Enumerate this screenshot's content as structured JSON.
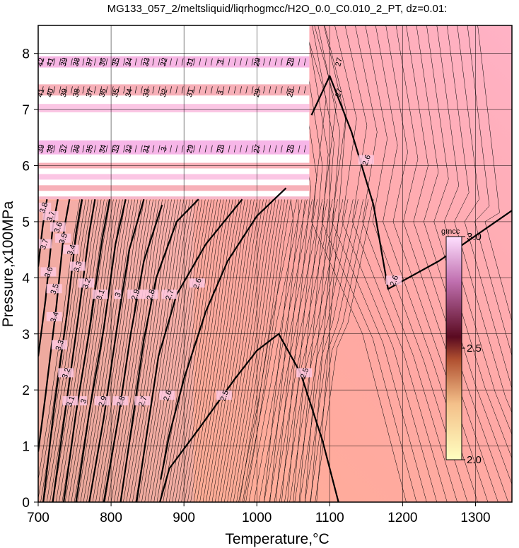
{
  "title": "MG133_057_2/meltsliquid/liqrhogmcc/H2O_0.0_C0.010_2_PT, dz=0.01:",
  "chart_data": {
    "type": "heatmap",
    "xlabel": "Temperature,°C",
    "ylabel": "Pressure,x100MPa",
    "xlim": [
      700,
      1350
    ],
    "ylim": [
      0,
      8.5
    ],
    "xticks": [
      700,
      800,
      900,
      1000,
      1100,
      1200,
      1300
    ],
    "xtick_labels": [
      "700",
      "800",
      "900",
      "1000",
      "1100",
      "1200",
      "1300"
    ],
    "yticks": [
      0,
      1,
      2,
      3,
      4,
      5,
      6,
      7,
      8
    ],
    "ytick_labels": [
      "0",
      "1",
      "2",
      "3",
      "4",
      "5",
      "6",
      "7",
      "8"
    ],
    "grid": true,
    "colorbar": {
      "unit": "gmcc",
      "min": 2.0,
      "max": 3.0,
      "ticks": [
        2.0,
        2.5,
        3.0
      ],
      "tick_labels": [
        "2.0",
        "2.5",
        "3.0"
      ],
      "colors": [
        "#ffffc0",
        "#f4c08a",
        "#b05030",
        "#5a0a20",
        "#c070b0",
        "#ffe0ff"
      ]
    },
    "contour_interval": 0.01,
    "bold_contours": [
      {
        "label": "2.5",
        "points": [
          [
            867,
            0
          ],
          [
            880,
            0.6
          ],
          [
            920,
            1.3
          ],
          [
            970,
            2.2
          ],
          [
            1000,
            2.7
          ],
          [
            1030,
            3.0
          ],
          [
            1060,
            2.3
          ],
          [
            1090,
            1.1
          ],
          [
            1112,
            0
          ]
        ]
      },
      {
        "label": "2.6",
        "points": [
          [
            868,
            0.4
          ],
          [
            880,
            1.2
          ],
          [
            900,
            2.2
          ],
          [
            930,
            3.4
          ],
          [
            960,
            4.3
          ],
          [
            1000,
            5.1
          ],
          [
            1040,
            5.6
          ]
        ]
      },
      {
        "label": "2.6",
        "points": [
          [
            1075,
            6.9
          ],
          [
            1100,
            7.6
          ],
          [
            1130,
            6.6
          ],
          [
            1160,
            5.3
          ],
          [
            1180,
            3.8
          ],
          [
            1250,
            4.3
          ],
          [
            1350,
            5.2
          ]
        ]
      },
      {
        "label": "2.7",
        "points": [
          [
            835,
            0
          ],
          [
            850,
            1.3
          ],
          [
            865,
            2.6
          ],
          [
            890,
            3.7
          ],
          [
            930,
            4.6
          ],
          [
            980,
            5.4
          ]
        ]
      },
      {
        "label": "2.8",
        "points": [
          [
            813,
            0
          ],
          [
            830,
            1.5
          ],
          [
            845,
            2.9
          ],
          [
            862,
            4.0
          ],
          [
            890,
            5.0
          ],
          [
            920,
            5.4
          ]
        ]
      },
      {
        "label": "2.9",
        "points": [
          [
            790,
            0
          ],
          [
            810,
            1.5
          ],
          [
            827,
            3.0
          ],
          [
            845,
            4.3
          ],
          [
            870,
            5.3
          ]
        ]
      },
      {
        "label": "3",
        "points": [
          [
            770,
            0
          ],
          [
            790,
            1.5
          ],
          [
            808,
            3.1
          ],
          [
            825,
            4.5
          ],
          [
            845,
            5.4
          ]
        ]
      },
      {
        "label": "3.1",
        "points": [
          [
            752,
            0
          ],
          [
            770,
            1.6
          ],
          [
            790,
            3.1
          ],
          [
            806,
            4.6
          ],
          [
            820,
            5.4
          ]
        ]
      },
      {
        "label": "3.2",
        "points": [
          [
            735,
            0
          ],
          [
            752,
            1.6
          ],
          [
            772,
            3.2
          ],
          [
            788,
            4.7
          ],
          [
            798,
            5.4
          ]
        ]
      },
      {
        "label": "3.3",
        "points": [
          [
            720,
            0
          ],
          [
            737,
            1.6
          ],
          [
            755,
            3.3
          ],
          [
            770,
            4.8
          ],
          [
            778,
            5.4
          ]
        ]
      },
      {
        "label": "3.4",
        "points": [
          [
            707,
            0
          ],
          [
            722,
            1.7
          ],
          [
            740,
            3.4
          ],
          [
            752,
            4.8
          ],
          [
            760,
            5.4
          ]
        ]
      },
      {
        "label": "3.5",
        "points": [
          [
            700,
            0.9
          ],
          [
            710,
            1.9
          ],
          [
            725,
            3.5
          ],
          [
            736,
            4.9
          ],
          [
            743,
            5.4
          ]
        ]
      },
      {
        "label": "3.6",
        "points": [
          [
            700,
            2.6
          ],
          [
            710,
            3.6
          ],
          [
            720,
            4.9
          ],
          [
            727,
            5.4
          ]
        ]
      },
      {
        "label": "3.7",
        "points": [
          [
            700,
            4.2
          ],
          [
            706,
            4.9
          ],
          [
            712,
            5.4
          ]
        ]
      }
    ],
    "contour_labels": [
      {
        "text": "2.5",
        "x": 955,
        "y": 1.9
      },
      {
        "text": "2.5",
        "x": 1065,
        "y": 2.3
      },
      {
        "text": "2.6",
        "x": 918,
        "y": 3.9
      },
      {
        "text": "2.6",
        "x": 877,
        "y": 1.9
      },
      {
        "text": "2.6",
        "x": 1150,
        "y": 6.1
      },
      {
        "text": "2.6",
        "x": 1188,
        "y": 3.95
      },
      {
        "text": "2.7",
        "x": 843,
        "y": 1.8
      },
      {
        "text": "2.7",
        "x": 880,
        "y": 3.7
      },
      {
        "text": "2.8",
        "x": 813,
        "y": 1.8
      },
      {
        "text": "2.8",
        "x": 854,
        "y": 3.7
      },
      {
        "text": "2.9",
        "x": 788,
        "y": 1.8
      },
      {
        "text": "2.9",
        "x": 833,
        "y": 3.7
      },
      {
        "text": "3",
        "x": 762,
        "y": 1.8
      },
      {
        "text": "3",
        "x": 809,
        "y": 3.7
      },
      {
        "text": "3.1",
        "x": 744,
        "y": 1.8
      },
      {
        "text": "3.1",
        "x": 785,
        "y": 3.7
      },
      {
        "text": "3.2",
        "x": 738,
        "y": 2.3
      },
      {
        "text": "3.2",
        "x": 766,
        "y": 3.9
      },
      {
        "text": "3.3",
        "x": 729,
        "y": 2.8
      },
      {
        "text": "3.3",
        "x": 754,
        "y": 4.2
      },
      {
        "text": "3.4",
        "x": 722,
        "y": 3.3
      },
      {
        "text": "3.4",
        "x": 745,
        "y": 4.5
      },
      {
        "text": "3.5",
        "x": 722,
        "y": 3.8
      },
      {
        "text": "3.5",
        "x": 734,
        "y": 4.7
      },
      {
        "text": "3.6",
        "x": 714,
        "y": 4.1
      },
      {
        "text": "3.6",
        "x": 727,
        "y": 4.9
      },
      {
        "text": "3.7",
        "x": 708,
        "y": 4.6
      },
      {
        "text": "3.7",
        "x": 717,
        "y": 5.1
      },
      {
        "text": "3.8",
        "x": 707,
        "y": 5.25
      }
    ],
    "stripe_label_rows": [
      {
        "y": 7.85,
        "labels": [
          {
            "x": 703,
            "text": "42"
          },
          {
            "x": 716,
            "text": "41"
          },
          {
            "x": 735,
            "text": "39"
          },
          {
            "x": 752,
            "text": "38"
          },
          {
            "x": 770,
            "text": "37"
          },
          {
            "x": 788,
            "text": "36"
          },
          {
            "x": 806,
            "text": "35"
          },
          {
            "x": 824,
            "text": "34"
          },
          {
            "x": 848,
            "text": "33"
          },
          {
            "x": 872,
            "text": "32"
          },
          {
            "x": 908,
            "text": "31"
          },
          {
            "x": 950,
            "text": "3"
          },
          {
            "x": 1000,
            "text": "29"
          },
          {
            "x": 1046,
            "text": "28"
          },
          {
            "x": 1112,
            "text": "27"
          }
        ]
      },
      {
        "y": 7.3,
        "labels": [
          {
            "x": 703,
            "text": "41"
          },
          {
            "x": 716,
            "text": "40"
          },
          {
            "x": 735,
            "text": "39"
          },
          {
            "x": 752,
            "text": "38"
          },
          {
            "x": 770,
            "text": "37"
          },
          {
            "x": 788,
            "text": "36"
          },
          {
            "x": 806,
            "text": "35"
          },
          {
            "x": 824,
            "text": "34"
          },
          {
            "x": 848,
            "text": "33"
          },
          {
            "x": 872,
            "text": "32"
          },
          {
            "x": 908,
            "text": "31"
          },
          {
            "x": 950,
            "text": "3"
          },
          {
            "x": 1000,
            "text": "29"
          },
          {
            "x": 1046,
            "text": "28"
          },
          {
            "x": 1112,
            "text": "27"
          }
        ]
      },
      {
        "y": 6.3,
        "labels": [
          {
            "x": 703,
            "text": "39"
          },
          {
            "x": 716,
            "text": "38"
          },
          {
            "x": 735,
            "text": "37"
          },
          {
            "x": 752,
            "text": "36"
          },
          {
            "x": 770,
            "text": "35"
          },
          {
            "x": 788,
            "text": "34"
          },
          {
            "x": 806,
            "text": "33"
          },
          {
            "x": 824,
            "text": "32"
          },
          {
            "x": 848,
            "text": "31"
          },
          {
            "x": 872,
            "text": "3"
          },
          {
            "x": 908,
            "text": "29"
          },
          {
            "x": 950,
            "text": "28"
          },
          {
            "x": 1000,
            "text": "27"
          },
          {
            "x": 1046,
            "text": "26"
          }
        ]
      }
    ]
  }
}
